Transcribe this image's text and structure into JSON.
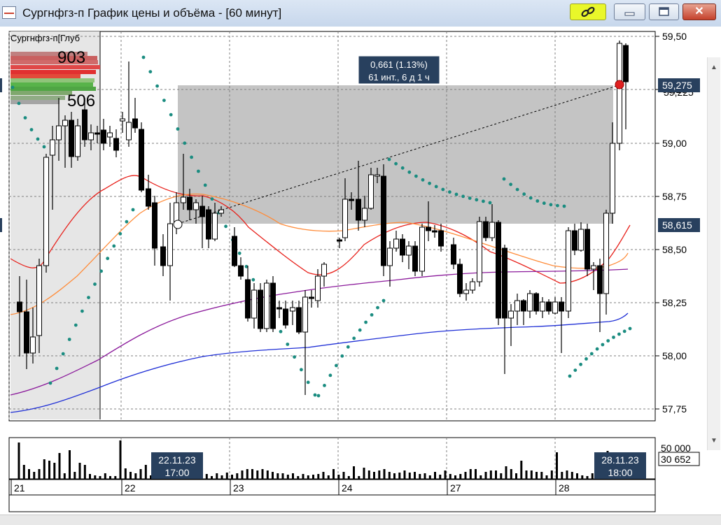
{
  "window": {
    "title": "Сургнфгз-п График цены и объёма - [60 минут]",
    "buttons": {
      "link_icon": "chain-link-icon",
      "minimize_icon": "minimize-icon",
      "maximize_icon": "maximize-icon",
      "close_icon": "close-icon"
    }
  },
  "chart": {
    "instrument_label": "Сургнфгз-п[Глуб",
    "depth_ask_volume": "903",
    "depth_bid_volume": "506",
    "measure_tooltip": {
      "line1": "0,661 (1.13%)",
      "line2": "61 инт., 6 д 1 ч"
    },
    "price_axis_ticks": [
      "59,50",
      "59,25",
      "59,00",
      "58,75",
      "58,50",
      "58,25",
      "58,00",
      "57,75"
    ],
    "price_markers": {
      "upper": "59,275",
      "lower": "58,615",
      "hidden": "59,225"
    },
    "colors": {
      "bull": "#ffffff",
      "bear": "#000000",
      "grid": "#808080",
      "sar": "#1a8c80",
      "ma_red": "#e8201a",
      "ma_orange": "#ff8c3a",
      "ma_purple": "#8b1a9b",
      "ma_blue": "#1f2fd6",
      "selection": "#c4c4c4",
      "marker_bg": "#28405e"
    }
  },
  "volume": {
    "axis_label_top": "50 000",
    "current_volume": "30 652",
    "cursor_left": {
      "date": "22.11.23",
      "time": "17:00"
    },
    "cursor_right": {
      "date": "28.11.23",
      "time": "18:00"
    }
  },
  "time_axis": {
    "days": [
      "21",
      "22",
      "23",
      "24",
      "27",
      "28"
    ]
  }
}
